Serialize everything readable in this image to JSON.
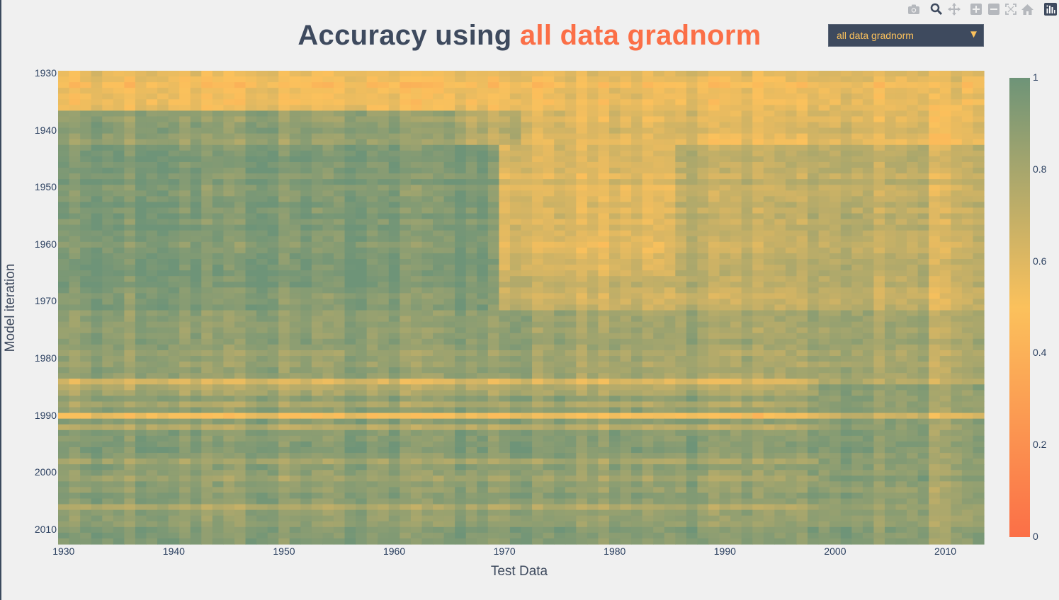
{
  "title": {
    "prefix": "Accuracy using",
    "highlight": "all data gradnorm"
  },
  "dropdown": {
    "selected": "all data gradnorm"
  },
  "modebar": {
    "icons": [
      "camera-icon",
      "zoom-icon",
      "pan-icon",
      "zoom-in-icon",
      "zoom-out-icon",
      "autoscale-icon",
      "home-icon",
      "plotly-logo-icon"
    ]
  },
  "colors": {
    "low": "#fb6f47",
    "mid": "#fbc15c",
    "high": "#6e9478",
    "text": "#2a3f5f",
    "title": "#3e4a5e"
  },
  "chart_data": {
    "type": "heatmap",
    "x": {
      "label": "Test Data",
      "start": 1930,
      "end": 2013,
      "ticks": [
        "1930",
        "1940",
        "1950",
        "1960",
        "1970",
        "1980",
        "1990",
        "2000",
        "2010"
      ]
    },
    "y": {
      "label": "Model iteration",
      "start": 1930,
      "end": 2012,
      "ticks": [
        "1930",
        "1940",
        "1950",
        "1960",
        "1970",
        "1980",
        "1990",
        "2000",
        "2010"
      ],
      "reversed": true
    },
    "z_range": [
      0,
      1
    ],
    "colorbar": {
      "ticks": [
        "1",
        "0.8",
        "0.6",
        "0.4",
        "0.2",
        "0"
      ]
    },
    "regions_summary": [
      {
        "models": "1930-1936",
        "test": "all",
        "accuracy": 0.52
      },
      {
        "models": "1937-1942",
        "test": "1930-1965",
        "accuracy": 0.88
      },
      {
        "models": "1943-1971",
        "test": "1930-1969",
        "accuracy": 0.94
      },
      {
        "models": "1943-1971",
        "test": "1971-1985",
        "accuracy": 0.58
      },
      {
        "models": "1943-1971",
        "test": "1986-2013",
        "accuracy": 0.72
      },
      {
        "models": "1972-1983",
        "test": "all",
        "accuracy": 0.86
      },
      {
        "models": "1984",
        "test": "all",
        "accuracy": 0.55
      },
      {
        "models": "1990",
        "test": "1930-1998",
        "accuracy": 0.5
      },
      {
        "models": "1991-2012",
        "test": "all",
        "accuracy": 0.9
      }
    ]
  }
}
